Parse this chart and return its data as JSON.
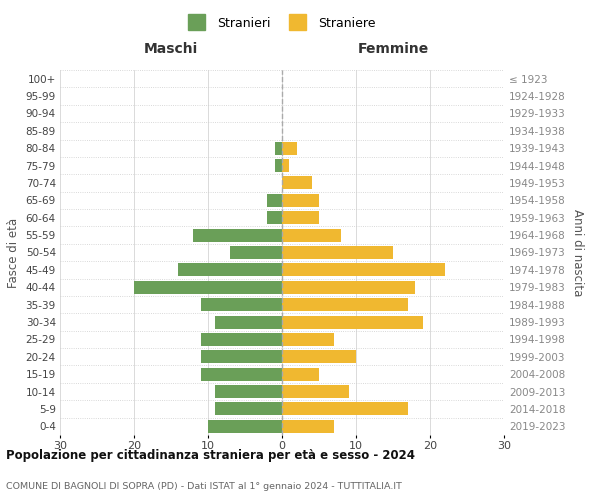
{
  "age_groups": [
    "0-4",
    "5-9",
    "10-14",
    "15-19",
    "20-24",
    "25-29",
    "30-34",
    "35-39",
    "40-44",
    "45-49",
    "50-54",
    "55-59",
    "60-64",
    "65-69",
    "70-74",
    "75-79",
    "80-84",
    "85-89",
    "90-94",
    "95-99",
    "100+"
  ],
  "birth_years": [
    "2019-2023",
    "2014-2018",
    "2009-2013",
    "2004-2008",
    "1999-2003",
    "1994-1998",
    "1989-1993",
    "1984-1988",
    "1979-1983",
    "1974-1978",
    "1969-1973",
    "1964-1968",
    "1959-1963",
    "1954-1958",
    "1949-1953",
    "1944-1948",
    "1939-1943",
    "1934-1938",
    "1929-1933",
    "1924-1928",
    "≤ 1923"
  ],
  "males": [
    10,
    9,
    9,
    11,
    11,
    11,
    9,
    11,
    20,
    14,
    7,
    12,
    2,
    2,
    0,
    1,
    1,
    0,
    0,
    0,
    0
  ],
  "females": [
    7,
    17,
    9,
    5,
    10,
    7,
    19,
    17,
    18,
    22,
    15,
    8,
    5,
    5,
    4,
    1,
    2,
    0,
    0,
    0,
    0
  ],
  "male_color": "#6a9f58",
  "female_color": "#f0b830",
  "male_label": "Stranieri",
  "female_label": "Straniere",
  "title1": "Popolazione per cittadinanza straniera per età e sesso - 2024",
  "title2": "COMUNE DI BAGNOLI DI SOPRA (PD) - Dati ISTAT al 1° gennaio 2024 - TUTTITALIA.IT",
  "xlabel_left": "Maschi",
  "xlabel_right": "Femmine",
  "ylabel_left": "Fasce di età",
  "ylabel_right": "Anni di nascita",
  "xlim": 30,
  "background_color": "#ffffff",
  "grid_color": "#cccccc"
}
